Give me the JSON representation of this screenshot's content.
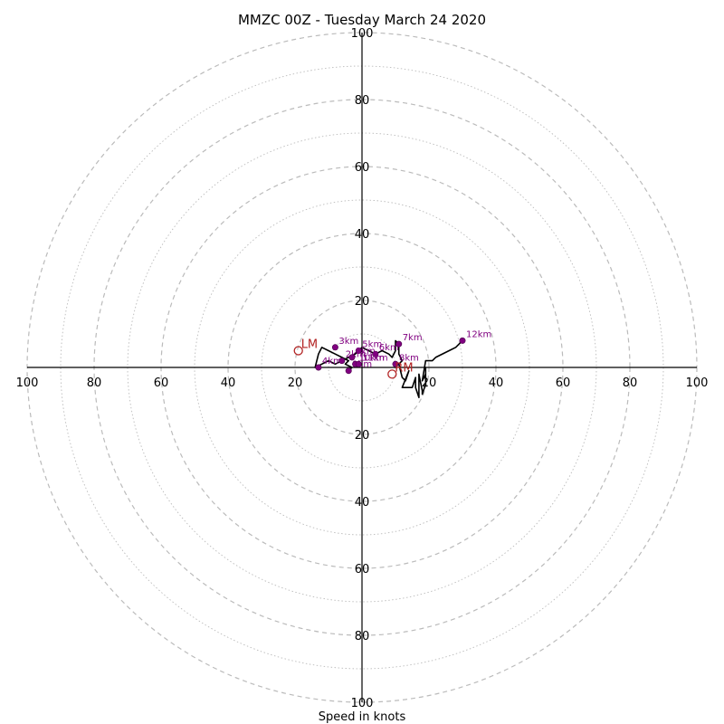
{
  "chart_data": {
    "type": "hodograph",
    "title": "MMZC 00Z - Tuesday March 24 2020",
    "xlabel": "Speed in knots",
    "max_speed": 100,
    "ring_step_major": 20,
    "ring_step_minor": 10,
    "tick_labels": [
      "20",
      "40",
      "60",
      "80",
      "100"
    ],
    "colors": {
      "profile": "#000000",
      "height_marker": "#800080",
      "storm_motion": "#b22222",
      "ring": "#bbbbbb"
    },
    "profile": [
      [
        -4,
        -1
      ],
      [
        -3,
        0
      ],
      [
        -5,
        1
      ],
      [
        -4,
        2
      ],
      [
        -6,
        3
      ],
      [
        -8,
        4
      ],
      [
        -10,
        5
      ],
      [
        -12,
        6
      ],
      [
        -13,
        4
      ],
      [
        -14,
        0
      ],
      [
        -12,
        1
      ],
      [
        -10,
        2
      ],
      [
        -8,
        1
      ],
      [
        -6,
        2
      ],
      [
        -4,
        3
      ],
      [
        -2,
        4
      ],
      [
        0,
        6
      ],
      [
        2,
        5
      ],
      [
        4,
        4
      ],
      [
        6,
        5
      ],
      [
        8,
        4
      ],
      [
        9,
        3
      ],
      [
        10,
        5
      ],
      [
        10,
        8
      ],
      [
        11,
        7
      ],
      [
        11,
        4
      ],
      [
        12,
        2
      ],
      [
        11,
        1
      ],
      [
        12,
        -3
      ],
      [
        13,
        -4
      ],
      [
        14,
        -1
      ],
      [
        12,
        -6
      ],
      [
        15,
        -6
      ],
      [
        16,
        -3
      ],
      [
        16,
        -6
      ],
      [
        17,
        -9
      ],
      [
        17,
        -5
      ],
      [
        17,
        -2
      ],
      [
        18,
        -7
      ],
      [
        18,
        -8
      ],
      [
        19,
        -5
      ],
      [
        19,
        0
      ],
      [
        19,
        -2
      ],
      [
        18,
        -4
      ],
      [
        19,
        2
      ],
      [
        21,
        2
      ],
      [
        22,
        3
      ],
      [
        26,
        5
      ],
      [
        28,
        6
      ],
      [
        30,
        8
      ]
    ],
    "height_markers": [
      {
        "label": "1km",
        "u": -4,
        "v": -1
      },
      {
        "label": "2km",
        "u": -6,
        "v": 2
      },
      {
        "label": "3km",
        "u": -8,
        "v": 6
      },
      {
        "label": "4km",
        "u": -13,
        "v": 0
      },
      {
        "label": "5km",
        "u": -1,
        "v": 5
      },
      {
        "label": "6km",
        "u": 4,
        "v": 4
      },
      {
        "label": "7km",
        "u": 11,
        "v": 7
      },
      {
        "label": "8km",
        "u": 10,
        "v": 1
      },
      {
        "label": "9km",
        "u": -3,
        "v": 3
      },
      {
        "label": "10km",
        "u": -2,
        "v": 1
      },
      {
        "label": "11km",
        "u": -1,
        "v": 1
      },
      {
        "label": "12km",
        "u": 30,
        "v": 8
      }
    ],
    "storm_motion": [
      {
        "label": "LM",
        "u": -19,
        "v": 5
      },
      {
        "label": "RM",
        "u": 9,
        "v": -2
      }
    ]
  }
}
